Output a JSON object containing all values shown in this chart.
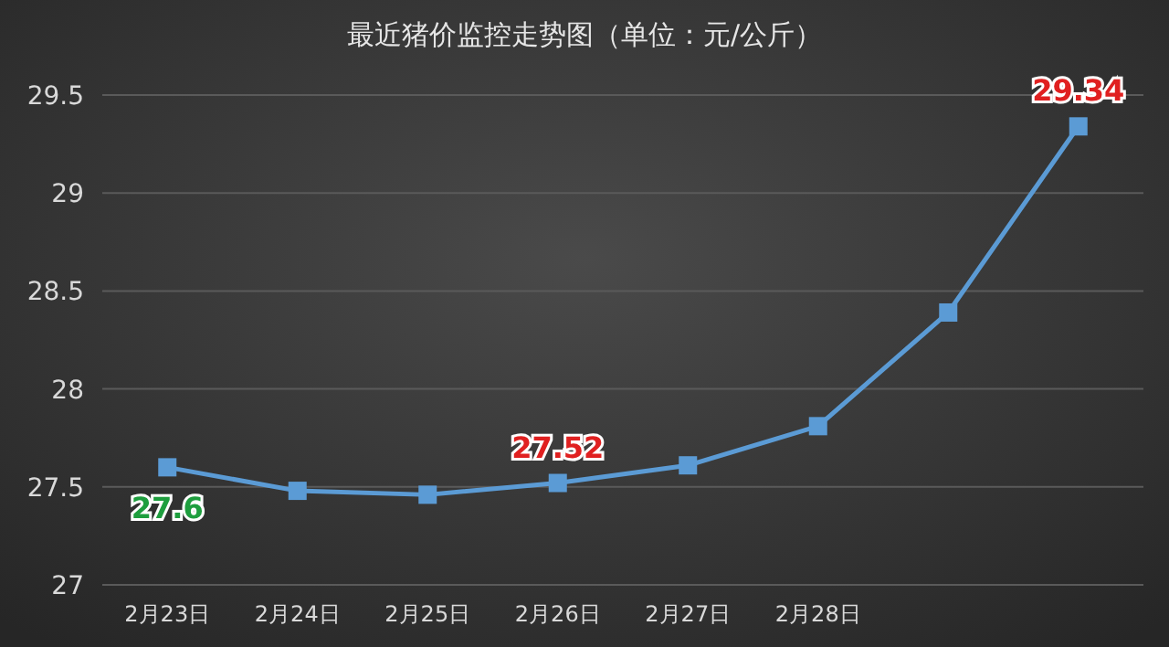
{
  "chart_data": {
    "type": "line",
    "title": "最近猪价监控走势图（单位：元/公斤）",
    "categories": [
      "2月23日",
      "2月24日",
      "2月25日",
      "2月26日",
      "2月27日",
      "2月28日",
      null,
      null
    ],
    "series": [
      {
        "color": "#5b9bd5",
        "values": [
          27.6,
          27.48,
          27.46,
          27.52,
          27.61,
          27.81,
          28.39,
          29.34
        ],
        "value_labels": [
          "27.6",
          null,
          null,
          "27.52",
          null,
          null,
          null,
          "29.34"
        ]
      }
    ],
    "ylim": [
      27,
      29.5
    ],
    "yticks": [
      27,
      27.5,
      28,
      28.5,
      29,
      29.5
    ],
    "grid": "y",
    "marker": "square",
    "line_style": "solid"
  }
}
